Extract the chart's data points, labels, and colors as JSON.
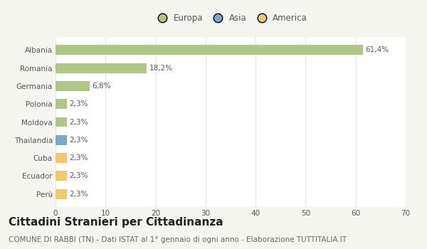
{
  "categories": [
    "Albania",
    "Romania",
    "Germania",
    "Polonia",
    "Moldova",
    "Thailandia",
    "Cuba",
    "Ecuador",
    "Perù"
  ],
  "values": [
    61.4,
    18.2,
    6.8,
    2.3,
    2.3,
    2.3,
    2.3,
    2.3,
    2.3
  ],
  "labels": [
    "61,4%",
    "18,2%",
    "6,8%",
    "2,3%",
    "2,3%",
    "2,3%",
    "2,3%",
    "2,3%",
    "2,3%"
  ],
  "colors": [
    "#aec785",
    "#aec785",
    "#aec785",
    "#aec785",
    "#aec785",
    "#7aaac8",
    "#f0c96a",
    "#f0c96a",
    "#f0c96a"
  ],
  "legend_labels": [
    "Europa",
    "Asia",
    "America"
  ],
  "legend_colors": [
    "#aec785",
    "#7aaac8",
    "#f0c96a"
  ],
  "xlim": [
    0,
    70
  ],
  "xticks": [
    0,
    10,
    20,
    30,
    40,
    50,
    60,
    70
  ],
  "title": "Cittadini Stranieri per Cittadinanza",
  "subtitle": "COMUNE DI RABBI (TN) - Dati ISTAT al 1° gennaio di ogni anno - Elaborazione TUTTITALIA.IT",
  "background_color": "#f5f5f0",
  "plot_bg_color": "#ffffff",
  "grid_color": "#e8e8e8",
  "bar_height": 0.55,
  "title_fontsize": 11,
  "subtitle_fontsize": 7.5,
  "label_fontsize": 7.5,
  "tick_fontsize": 7.5,
  "legend_fontsize": 8.5
}
